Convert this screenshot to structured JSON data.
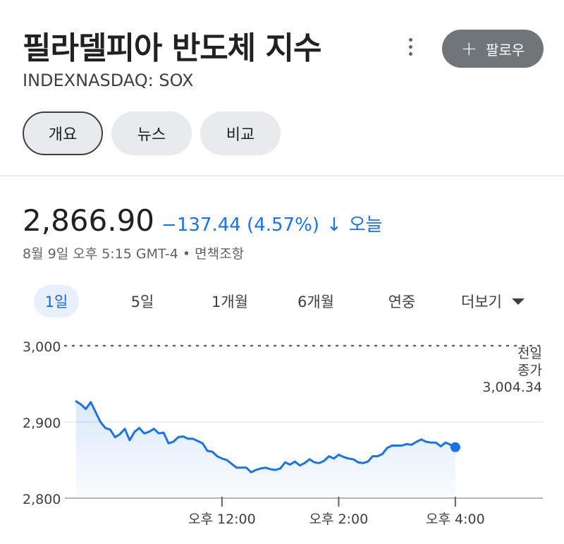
{
  "header": {
    "title": "필라델피아 반도체 지수",
    "ticker": "INDEXNASDAQ: SOX",
    "follow_label": "팔로우",
    "more_icon": "more-vert-icon"
  },
  "tabs": [
    {
      "label": "개요",
      "active": true
    },
    {
      "label": "뉴스",
      "active": false
    },
    {
      "label": "비교",
      "active": false
    }
  ],
  "quote": {
    "price": "2,866.90",
    "change": "−137.44 (4.57%)",
    "arrow": "↓",
    "period": "오늘",
    "timestamp": "8월 9일 오후 5:15 GMT-4 • 면책조항",
    "color": "#1a73e8"
  },
  "ranges": [
    {
      "label": "1일",
      "active": true
    },
    {
      "label": "5일",
      "active": false
    },
    {
      "label": "1개월",
      "active": false
    },
    {
      "label": "6개월",
      "active": false
    },
    {
      "label": "연중",
      "active": false
    },
    {
      "label": "더보기",
      "active": false
    }
  ],
  "chart_data": {
    "type": "area",
    "title": "",
    "xlabel": "",
    "ylabel": "",
    "ylim": [
      2800,
      3000
    ],
    "yticks": [
      {
        "value": 3000,
        "label": "3,000"
      },
      {
        "value": 2900,
        "label": "2,900"
      },
      {
        "value": 2800,
        "label": "2,800"
      }
    ],
    "xticks": [
      {
        "time": "12:00",
        "label": "오후 12:00"
      },
      {
        "time": "14:00",
        "label": "오후 2:00"
      },
      {
        "time": "16:00",
        "label": "오후 4:00"
      }
    ],
    "x_range": [
      "09:30",
      "17:30"
    ],
    "grid": true,
    "line_color": "#1a73e8",
    "previous_close": {
      "value": 3004.34,
      "label_line1": "전일",
      "label_line2": "종가",
      "value_label": "3,004.34"
    },
    "series": [
      {
        "x": [
          "09:30",
          "09:35",
          "09:40",
          "09:45",
          "09:50",
          "09:55",
          "10:00",
          "10:05",
          "10:10",
          "10:15",
          "10:20",
          "10:25",
          "10:30",
          "10:35",
          "10:40",
          "10:45",
          "10:50",
          "10:55",
          "11:00",
          "11:05",
          "11:10",
          "11:15",
          "11:20",
          "11:25",
          "11:30",
          "11:35",
          "11:40",
          "11:45",
          "11:50",
          "11:55",
          "12:00",
          "12:05",
          "12:10",
          "12:15",
          "12:20",
          "12:25",
          "12:30",
          "12:35",
          "12:40",
          "12:45",
          "12:50",
          "12:55",
          "13:00",
          "13:05",
          "13:10",
          "13:15",
          "13:20",
          "13:25",
          "13:30",
          "13:35",
          "13:40",
          "13:45",
          "13:50",
          "13:55",
          "14:00",
          "14:05",
          "14:10",
          "14:15",
          "14:20",
          "14:25",
          "14:30",
          "14:35",
          "14:40",
          "14:45",
          "14:50",
          "14:55",
          "15:00",
          "15:05",
          "15:10",
          "15:15",
          "15:20",
          "15:25",
          "15:30",
          "15:35",
          "15:40",
          "15:45",
          "15:50",
          "15:55",
          "16:00"
        ],
        "y": [
          2927,
          2923,
          2917,
          2926,
          2913,
          2900,
          2892,
          2890,
          2880,
          2884,
          2891,
          2876,
          2887,
          2892,
          2885,
          2887,
          2891,
          2885,
          2886,
          2872,
          2874,
          2880,
          2881,
          2878,
          2878,
          2875,
          2872,
          2862,
          2861,
          2855,
          2852,
          2850,
          2845,
          2840,
          2840,
          2840,
          2834,
          2837,
          2839,
          2840,
          2838,
          2837,
          2839,
          2847,
          2844,
          2848,
          2843,
          2846,
          2851,
          2847,
          2846,
          2849,
          2855,
          2852,
          2857,
          2854,
          2852,
          2851,
          2847,
          2846,
          2848,
          2855,
          2855,
          2858,
          2866,
          2869,
          2869,
          2869,
          2871,
          2870,
          2874,
          2877,
          2874,
          2873,
          2873,
          2868,
          2873,
          2870,
          2867
        ]
      }
    ],
    "last_point": {
      "time": "16:00",
      "value": 2866.9
    }
  }
}
